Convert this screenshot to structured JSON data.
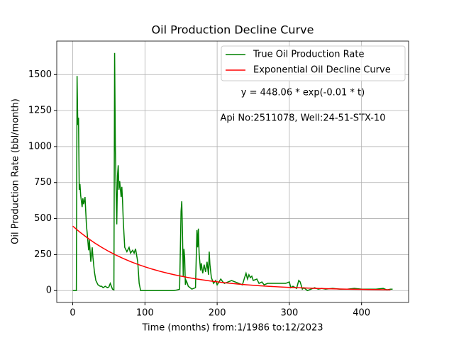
{
  "chart_data": {
    "type": "line",
    "title": "Oil Production Decline Curve",
    "xlabel": "Time (months) from:1/1986 to:12/2023",
    "ylabel": "Oil Production Rate (bbl/month)",
    "annotations": [
      "y = 448.06 * exp(-0.01 * t)",
      "Api No:2511078, Well:24-51-STX-10"
    ],
    "xlim": [
      -22.15,
      465.15
    ],
    "ylim": [
      -82.5,
      1732.5
    ],
    "xticks": [
      0,
      100,
      200,
      300,
      400
    ],
    "yticks": [
      0,
      250,
      500,
      750,
      1000,
      1250,
      1500
    ],
    "grid": true,
    "legend": "upper right",
    "series": [
      {
        "name": "True Oil Production Rate",
        "color": "#008000",
        "x": [
          0,
          5,
          6,
          7,
          8,
          9,
          10,
          11,
          12,
          13,
          14,
          15,
          16,
          17,
          18,
          19,
          20,
          22,
          23,
          25,
          27,
          28,
          30,
          32,
          35,
          38,
          40,
          42,
          45,
          48,
          50,
          52,
          55,
          57,
          58,
          59,
          60,
          61,
          62,
          63,
          64,
          65,
          67,
          68,
          69,
          70,
          72,
          75,
          78,
          80,
          83,
          85,
          87,
          90,
          92,
          94,
          100,
          120,
          140,
          145,
          148,
          150,
          151,
          152,
          153,
          154,
          155,
          156,
          157,
          158,
          160,
          165,
          170,
          172,
          173,
          174,
          175,
          177,
          178,
          180,
          182,
          184,
          186,
          188,
          189,
          190,
          192,
          195,
          198,
          200,
          205,
          208,
          210,
          215,
          220,
          225,
          230,
          235,
          238,
          240,
          242,
          244,
          246,
          248,
          250,
          255,
          258,
          262,
          265,
          270,
          275,
          280,
          285,
          290,
          295,
          300,
          302,
          305,
          310,
          313,
          315,
          318,
          320,
          325,
          330,
          335,
          340,
          345,
          350,
          360,
          370,
          380,
          390,
          400,
          410,
          420,
          430,
          435,
          440,
          443
        ],
        "values": [
          0,
          0,
          1490,
          1150,
          1200,
          700,
          740,
          660,
          620,
          580,
          640,
          600,
          620,
          650,
          550,
          450,
          400,
          280,
          350,
          200,
          300,
          230,
          130,
          70,
          40,
          30,
          30,
          20,
          30,
          20,
          25,
          50,
          10,
          5,
          1650,
          1000,
          700,
          460,
          800,
          870,
          700,
          760,
          650,
          720,
          620,
          480,
          300,
          270,
          300,
          260,
          280,
          260,
          290,
          200,
          50,
          0,
          0,
          0,
          0,
          5,
          10,
          550,
          620,
          400,
          100,
          290,
          230,
          40,
          70,
          60,
          30,
          10,
          20,
          420,
          300,
          430,
          260,
          140,
          190,
          120,
          180,
          130,
          200,
          110,
          270,
          180,
          90,
          50,
          70,
          40,
          80,
          60,
          50,
          60,
          70,
          60,
          50,
          40,
          90,
          120,
          80,
          110,
          90,
          100,
          70,
          80,
          50,
          60,
          40,
          50,
          50,
          50,
          50,
          50,
          50,
          60,
          20,
          30,
          15,
          70,
          60,
          10,
          20,
          0,
          10,
          20,
          10,
          15,
          10,
          15,
          10,
          10,
          15,
          10,
          10,
          10,
          15,
          5,
          10,
          10
        ]
      },
      {
        "name": "Exponential Oil Decline Curve",
        "color": "#ff0000",
        "x": [
          0,
          10,
          20,
          30,
          40,
          50,
          60,
          70,
          80,
          90,
          100,
          110,
          120,
          130,
          140,
          150,
          160,
          170,
          180,
          190,
          200,
          210,
          220,
          230,
          240,
          250,
          260,
          270,
          280,
          290,
          300,
          310,
          320,
          330,
          340,
          350,
          360,
          370,
          380,
          390,
          400,
          410,
          420,
          430,
          440
        ],
        "values": [
          448.06,
          405.42,
          366.84,
          331.93,
          300.34,
          271.76,
          245.9,
          222.5,
          201.32,
          182.17,
          164.83,
          149.15,
          134.95,
          122.11,
          110.49,
          99.97,
          90.46,
          81.85,
          74.06,
          67.02,
          60.64,
          54.87,
          49.65,
          44.92,
          40.65,
          36.78,
          33.28,
          30.11,
          27.25,
          24.65,
          22.31,
          20.18,
          18.26,
          16.53,
          14.95,
          13.53,
          12.24,
          11.08,
          10.02,
          9.07,
          8.21,
          7.43,
          6.72,
          6.08,
          5.5
        ]
      }
    ]
  }
}
